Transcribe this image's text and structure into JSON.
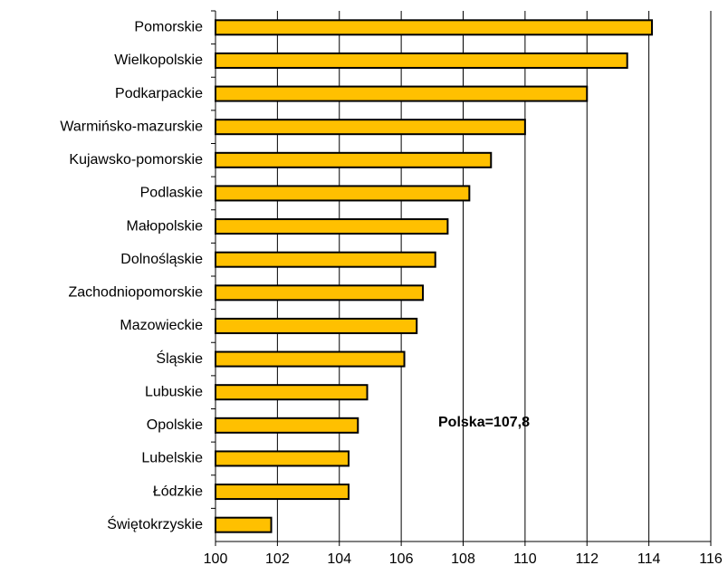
{
  "chart_data": {
    "type": "barh",
    "categories": [
      "Pomorskie",
      "Wielkopolskie",
      "Podkarpackie",
      "Warmińsko-mazurskie",
      "Kujawsko-pomorskie",
      "Podlaskie",
      "Małopolskie",
      "Dolnośląskie",
      "Zachodniopomorskie",
      "Mazowieckie",
      "Śląskie",
      "Lubuskie",
      "Opolskie",
      "Lubelskie",
      "Łódzkie",
      "Świętokrzyskie"
    ],
    "values": [
      114.1,
      113.3,
      112.0,
      110.0,
      108.9,
      108.2,
      107.5,
      107.1,
      106.7,
      106.5,
      106.1,
      104.9,
      104.6,
      104.3,
      104.3,
      101.8
    ],
    "color": "#ffc000",
    "xlim": [
      100,
      116
    ],
    "xticks": [
      100,
      102,
      104,
      106,
      108,
      110,
      112,
      114,
      116
    ],
    "grid": true,
    "annotation": "Polska=107,8"
  }
}
